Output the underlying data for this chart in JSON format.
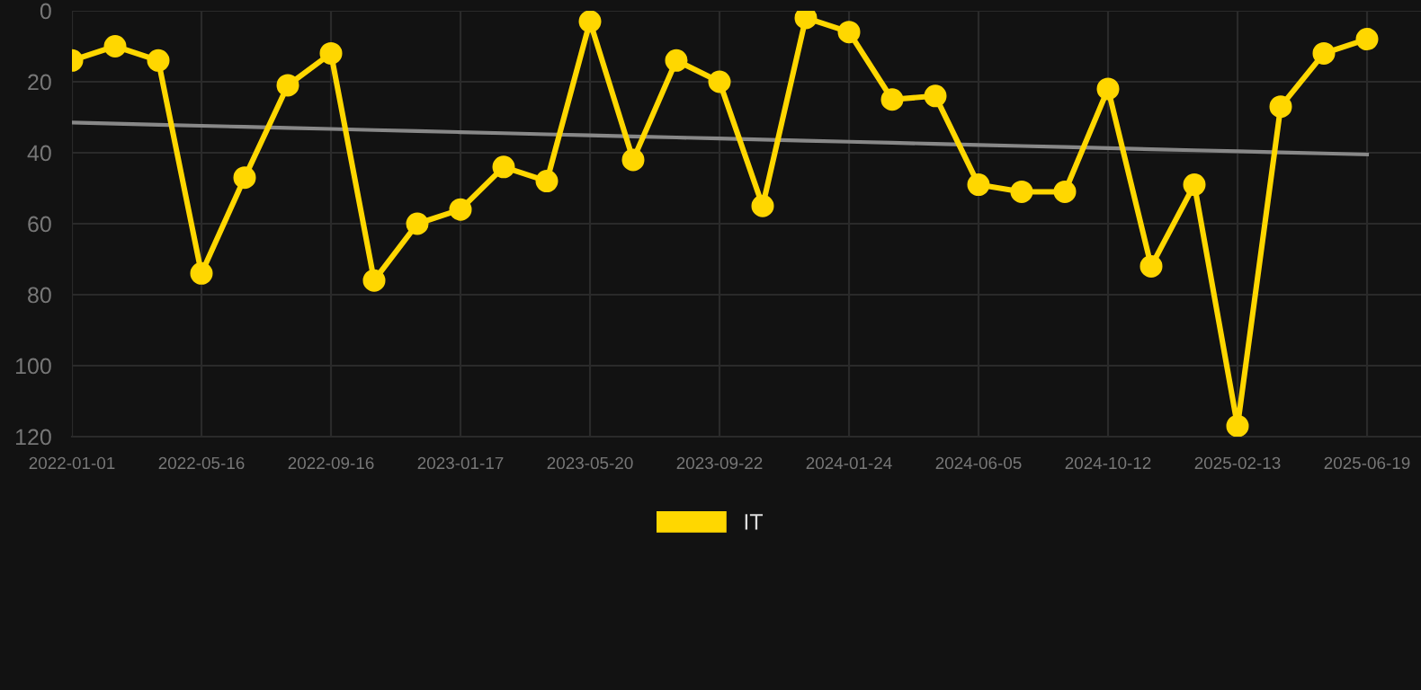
{
  "chart_data": {
    "type": "line",
    "categories": [
      "2022-01-01",
      null,
      null,
      "2022-05-16",
      null,
      null,
      "2022-09-16",
      null,
      null,
      "2023-01-17",
      null,
      null,
      "2023-05-20",
      null,
      null,
      "2023-09-22",
      null,
      null,
      "2024-01-24",
      null,
      null,
      "2024-06-05",
      null,
      null,
      "2024-10-12",
      null,
      null,
      "2025-02-13",
      null,
      null,
      "2025-06-19"
    ],
    "series": [
      {
        "name": "IT",
        "color": "#ffd700",
        "marker": "circle",
        "values": [
          14,
          10,
          14,
          74,
          47,
          21,
          12,
          76,
          60,
          56,
          44,
          48,
          3,
          42,
          14,
          20,
          55,
          2,
          6,
          25,
          24,
          49,
          51,
          51,
          22,
          72,
          49,
          117,
          27,
          12,
          8
        ]
      },
      {
        "type": "line",
        "color": "#888888",
        "marker": "none",
        "values": [
          31.5,
          31.8,
          32.1,
          32.4,
          32.7,
          33.0,
          33.3,
          33.6,
          33.9,
          34.2,
          34.5,
          34.8,
          35.1,
          35.4,
          35.7,
          36.0,
          36.3,
          36.6,
          36.9,
          37.2,
          37.5,
          37.8,
          38.1,
          38.4,
          38.7,
          39.0,
          39.3,
          39.6,
          39.9,
          40.2,
          40.5
        ]
      }
    ],
    "ylim": [
      120,
      0
    ],
    "yticks": [
      0,
      20,
      40,
      60,
      80,
      100,
      120
    ],
    "grid": true,
    "legend": "bottom",
    "line_style": "solid"
  }
}
